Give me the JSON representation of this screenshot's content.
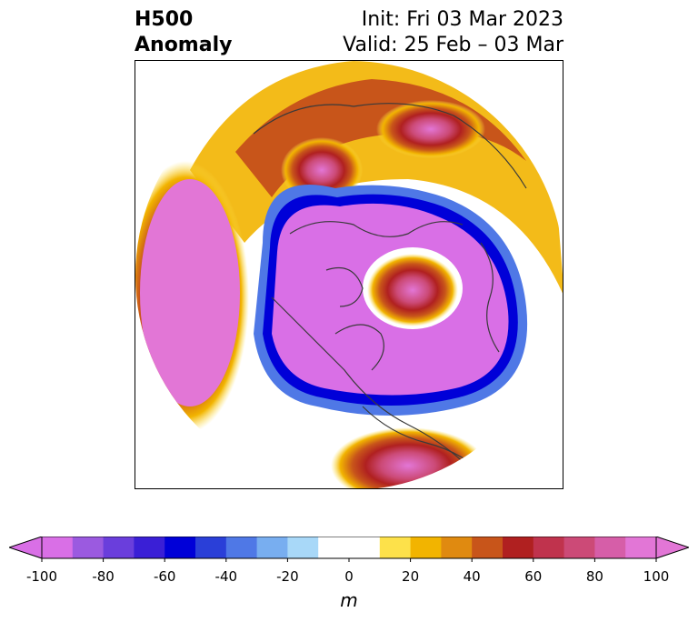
{
  "title": {
    "left_line1": "H500",
    "left_line2": "Anomaly",
    "right_line1": "Init: Fri 03 Mar 2023",
    "right_line2": "Valid: 25 Feb – 03 Mar"
  },
  "colorbar": {
    "unit": "m",
    "ticks": [
      "-100",
      "-80",
      "-60",
      "-40",
      "-20",
      "0",
      "20",
      "40",
      "60",
      "80",
      "100"
    ],
    "tick_values": [
      -100,
      -80,
      -60,
      -40,
      -20,
      0,
      20,
      40,
      60,
      80,
      100
    ],
    "range": [
      -100,
      100
    ],
    "bin_size": 10,
    "extend": "both",
    "colors": [
      "#d96fe6",
      "#9b5ae0",
      "#6a3edc",
      "#3a1fd6",
      "#0000d8",
      "#2a3fd8",
      "#4f78e6",
      "#78aef0",
      "#a8d8f8",
      "#ffffff",
      "#ffffff",
      "#fde14a",
      "#f2b400",
      "#e08a10",
      "#c8551a",
      "#b02020",
      "#c0334d",
      "#cc4a77",
      "#d65ea8",
      "#e276d6"
    ],
    "extend_low_color": "#d96fe6",
    "extend_high_color": "#e276d6"
  }
}
